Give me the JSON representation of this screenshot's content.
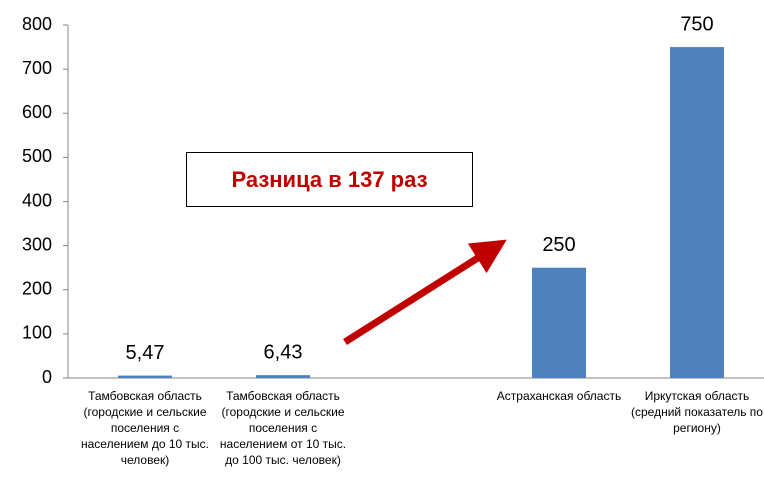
{
  "chart_data": {
    "type": "bar",
    "categories": [
      "Тамбовская область (городские и сельские поселения с населением до 10 тыс. человек)",
      "Тамбовская область (городские и сельские поселения с населением от 10 тыс. до 100 тыс. человек)",
      null,
      "Астраханская область",
      "Иркутская область (средний показатель по региону)"
    ],
    "values": [
      5.47,
      6.43,
      null,
      250,
      750
    ],
    "value_labels": [
      "5,47",
      "6,43",
      null,
      "250",
      "750"
    ],
    "color": "#4f81bd",
    "ylim": [
      0,
      800
    ],
    "yticks": [
      0,
      100,
      200,
      300,
      400,
      500,
      600,
      700,
      800
    ],
    "grid": false,
    "annotation": "Разница в 137 раз"
  }
}
